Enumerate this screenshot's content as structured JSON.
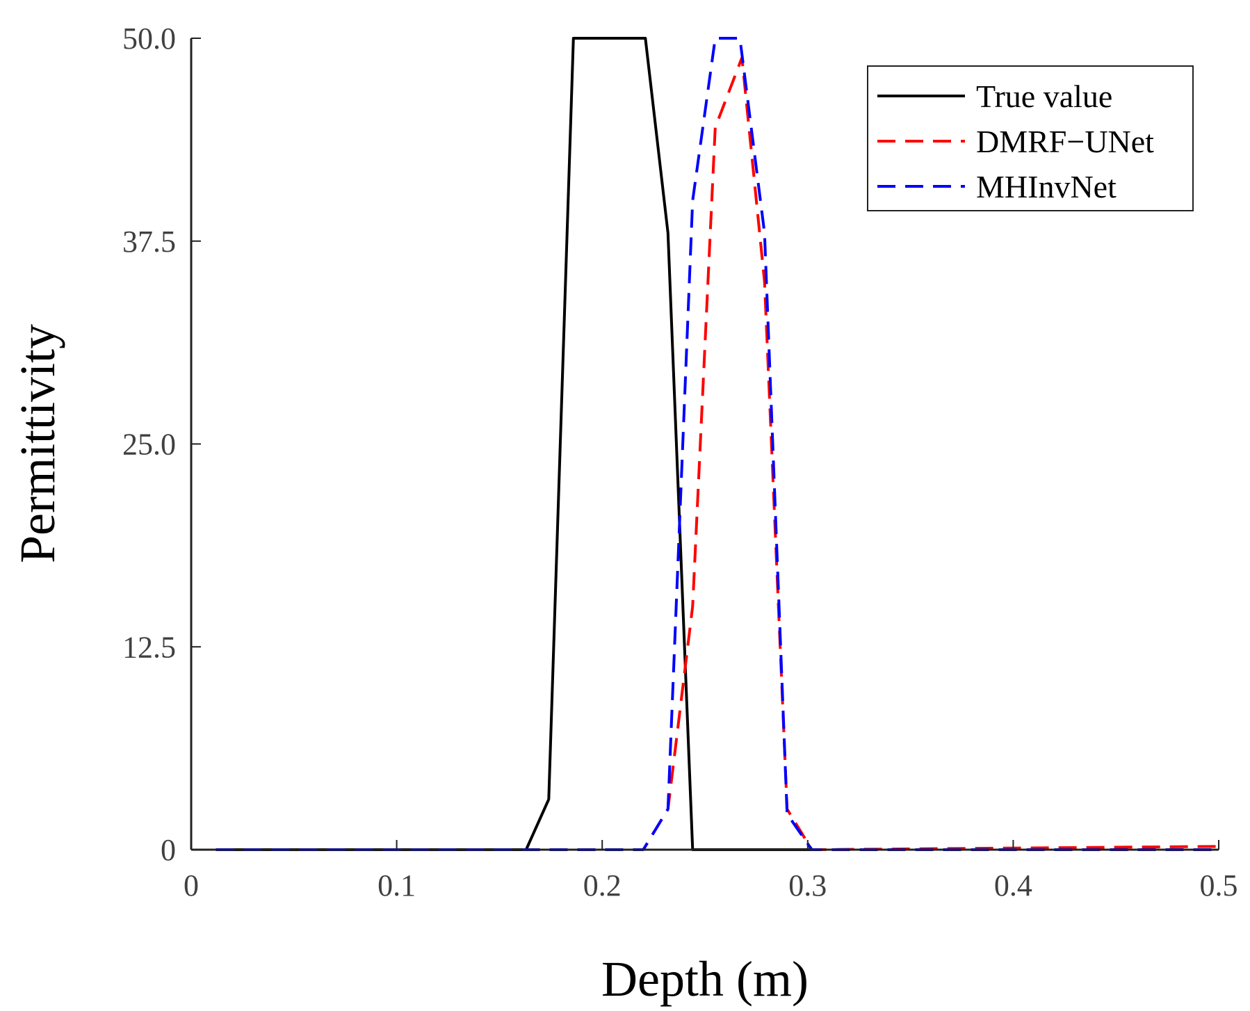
{
  "chart_data": {
    "type": "line",
    "title": "",
    "xlabel": "Depth (m)",
    "ylabel": "Permittivity",
    "xlim": [
      0,
      0.5
    ],
    "ylim": [
      0,
      50
    ],
    "grid": false,
    "legend_position": "top-right",
    "x_ticks": [
      0,
      0.1,
      0.2,
      0.3,
      0.4,
      0.5
    ],
    "x_tick_labels": [
      "0",
      "0.1",
      "0.2",
      "0.3",
      "0.4",
      "0.5"
    ],
    "y_ticks": [
      0,
      12.5,
      25,
      37.5,
      50
    ],
    "y_tick_labels": [
      "0",
      "12.5",
      "25.0",
      "37.5",
      "50.0"
    ],
    "series": [
      {
        "name": "True value",
        "color": "#000000",
        "style": "solid",
        "x": [
          0.012,
          0.163,
          0.174,
          0.186,
          0.221,
          0.232,
          0.244,
          0.302
        ],
        "y": [
          0,
          0,
          3.1,
          50,
          50,
          38.0,
          0,
          0
        ]
      },
      {
        "name": "DMRF−UNet",
        "color": "#ff0000",
        "style": "dashed",
        "x": [
          0.012,
          0.22,
          0.232,
          0.244,
          0.255,
          0.268,
          0.279,
          0.29,
          0.302,
          0.5
        ],
        "y": [
          0,
          0,
          2.5,
          15.0,
          44.5,
          48.8,
          35.0,
          2.5,
          0,
          0.2
        ]
      },
      {
        "name": "MHInvNet",
        "color": "#0000ff",
        "style": "dashed",
        "x": [
          0.012,
          0.22,
          0.232,
          0.244,
          0.255,
          0.26,
          0.267,
          0.279,
          0.29,
          0.302,
          0.5
        ],
        "y": [
          0,
          0,
          2.5,
          40.0,
          50,
          50,
          50,
          38.0,
          2.2,
          0,
          0
        ]
      }
    ]
  }
}
